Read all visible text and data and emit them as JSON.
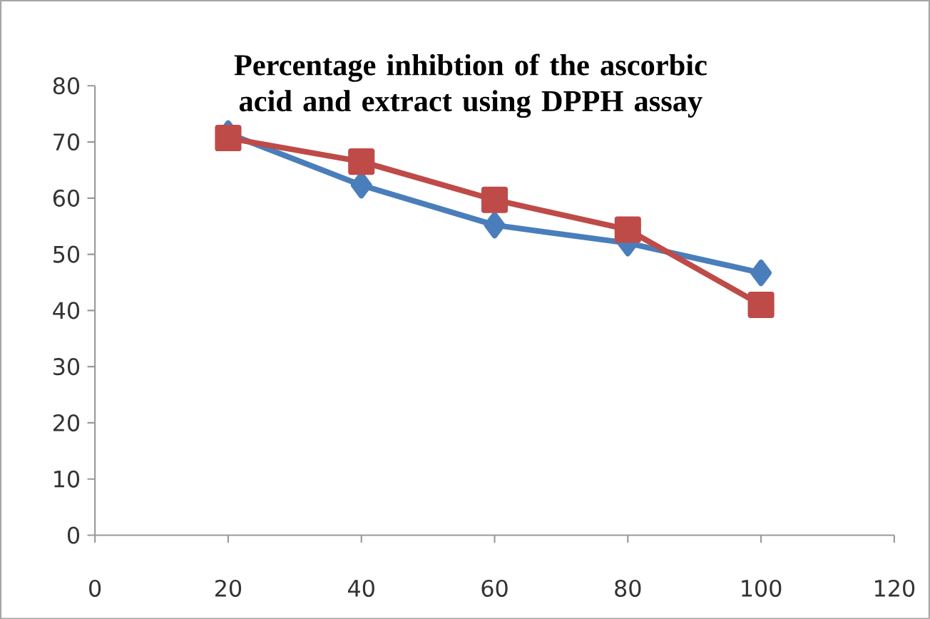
{
  "chart_data": {
    "type": "line",
    "title": "Percentage inhibtion of the ascorbic acid and extract using DPPH assay",
    "x": [
      20,
      40,
      60,
      80,
      100
    ],
    "series": [
      {
        "color": "#4a7ebb",
        "marker": "diamond",
        "values": [
          71.5,
          62.3,
          55.2,
          52,
          46.7
        ]
      },
      {
        "color": "#be4b48",
        "marker": "square",
        "values": [
          70.7,
          66.5,
          59.7,
          54.4,
          41
        ]
      }
    ],
    "xlim": [
      0,
      120
    ],
    "xticks": [
      0,
      20,
      40,
      60,
      80,
      100,
      120
    ],
    "ylim": [
      0,
      80
    ],
    "yticks": [
      0,
      10,
      20,
      30,
      40,
      50,
      60,
      70,
      80
    ]
  }
}
